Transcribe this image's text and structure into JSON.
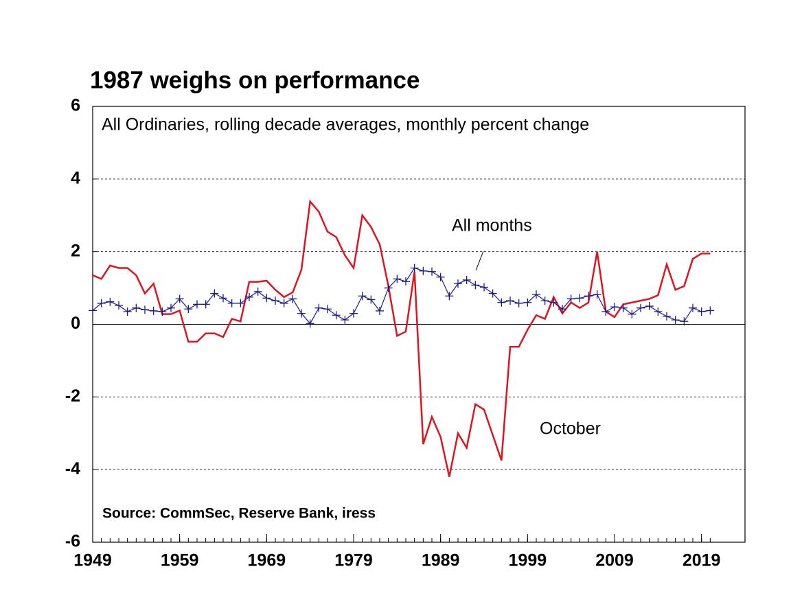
{
  "chart_data": {
    "type": "line",
    "title": "1987 weighs on performance",
    "subtitle": "All Ordinaries, rolling decade averages, monthly percent change",
    "source": "Source: CommSec, Reserve Bank, iress",
    "x": [
      1949,
      1950,
      1951,
      1952,
      1953,
      1954,
      1955,
      1956,
      1957,
      1958,
      1959,
      1960,
      1961,
      1962,
      1963,
      1964,
      1965,
      1966,
      1967,
      1968,
      1969,
      1970,
      1971,
      1972,
      1973,
      1974,
      1975,
      1976,
      1977,
      1978,
      1979,
      1980,
      1981,
      1982,
      1983,
      1984,
      1985,
      1986,
      1987,
      1988,
      1989,
      1990,
      1991,
      1992,
      1993,
      1994,
      1995,
      1996,
      1997,
      1998,
      1999,
      2000,
      2001,
      2002,
      2003,
      2004,
      2005,
      2006,
      2007,
      2008,
      2009,
      2010,
      2011,
      2012,
      2013,
      2014,
      2015,
      2016,
      2017,
      2018,
      2019,
      2020
    ],
    "series": [
      {
        "name": "All months",
        "color": "#1a1a8c",
        "marker": "plus",
        "values": [
          0.38,
          0.58,
          0.62,
          0.52,
          0.35,
          0.45,
          0.4,
          0.37,
          0.35,
          0.45,
          0.7,
          0.42,
          0.55,
          0.55,
          0.85,
          0.72,
          0.58,
          0.58,
          0.75,
          0.9,
          0.72,
          0.65,
          0.58,
          0.7,
          0.3,
          0.02,
          0.45,
          0.42,
          0.25,
          0.12,
          0.3,
          0.78,
          0.68,
          0.37,
          1.0,
          1.25,
          1.18,
          1.55,
          1.47,
          1.45,
          1.3,
          0.78,
          1.12,
          1.22,
          1.08,
          1.02,
          0.85,
          0.6,
          0.65,
          0.58,
          0.6,
          0.82,
          0.65,
          0.6,
          0.42,
          0.7,
          0.72,
          0.78,
          0.82,
          0.35,
          0.48,
          0.45,
          0.28,
          0.45,
          0.5,
          0.35,
          0.22,
          0.12,
          0.08,
          0.45,
          0.35,
          0.38
        ]
      },
      {
        "name": "October",
        "color": "#e0141e",
        "values": [
          1.35,
          1.25,
          1.62,
          1.55,
          1.55,
          1.35,
          0.85,
          1.12,
          0.28,
          0.28,
          0.38,
          -0.48,
          -0.48,
          -0.25,
          -0.25,
          -0.35,
          0.15,
          0.08,
          1.17,
          1.17,
          1.2,
          0.95,
          0.75,
          0.88,
          1.5,
          3.38,
          3.1,
          2.55,
          2.4,
          1.9,
          1.55,
          3.0,
          2.68,
          2.2,
          1.05,
          -0.32,
          -0.2,
          1.45,
          -3.3,
          -2.55,
          -3.1,
          -4.2,
          -3.0,
          -3.4,
          -2.2,
          -2.35,
          -3.05,
          -3.75,
          -0.62,
          -0.62,
          -0.15,
          0.25,
          0.15,
          0.75,
          0.3,
          0.6,
          0.45,
          0.6,
          2.0,
          0.35,
          0.2,
          0.55,
          0.6,
          0.65,
          0.7,
          0.8,
          1.65,
          0.95,
          1.05,
          1.8,
          1.95,
          1.95
        ]
      }
    ],
    "xlim": [
      1949,
      2024
    ],
    "xticks": [
      1949,
      1959,
      1969,
      1979,
      1989,
      1999,
      2009,
      2019
    ],
    "ylim": [
      -6,
      6
    ],
    "yticks": [
      -6,
      -4,
      -2,
      0,
      2,
      4,
      6
    ],
    "grid": true
  }
}
